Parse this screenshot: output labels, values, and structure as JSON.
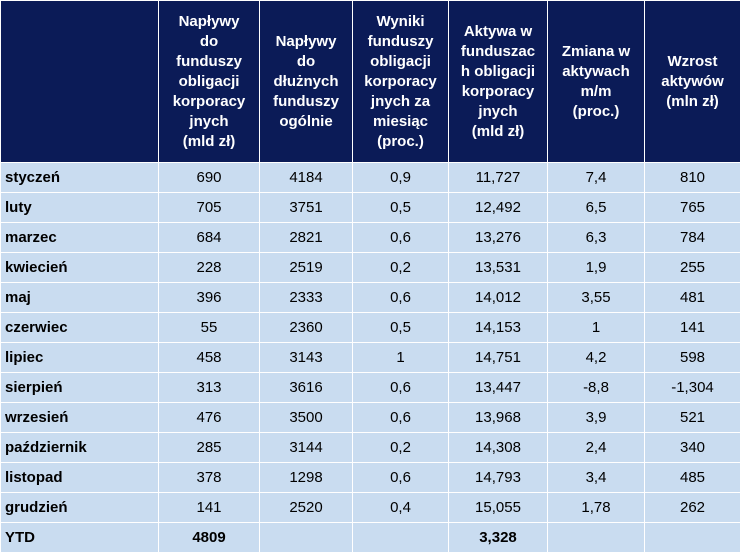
{
  "headers": [
    "",
    "Napływy\ndo\nfunduszy\nobligacji\nkorporacy\njnych\n(mld zł)",
    "Napływy\ndo\ndłużnych\nfunduszy\nogólnie",
    "Wyniki\nfunduszy\nobligacji\nkorporacy\njnych za\nmiesiąc\n(proc.)",
    "Aktywa w\nfunduszac\nh obligacji\nkorporacy\njnych\n(mld zł)",
    "Zmiana w\naktywach\nm/m\n(proc.)",
    "Wzrost\naktywów\n(mln zł)"
  ],
  "rows": [
    {
      "month": "styczeń",
      "c1": "690",
      "c2": "4184",
      "c3": "0,9",
      "c4": "11,727",
      "c5": "7,4",
      "c6": "810"
    },
    {
      "month": "luty",
      "c1": "705",
      "c2": "3751",
      "c3": "0,5",
      "c4": "12,492",
      "c5": "6,5",
      "c6": "765"
    },
    {
      "month": "marzec",
      "c1": "684",
      "c2": "2821",
      "c3": "0,6",
      "c4": "13,276",
      "c5": "6,3",
      "c6": "784"
    },
    {
      "month": "kwiecień",
      "c1": "228",
      "c2": "2519",
      "c3": "0,2",
      "c4": "13,531",
      "c5": "1,9",
      "c6": "255"
    },
    {
      "month": "maj",
      "c1": "396",
      "c2": "2333",
      "c3": "0,6",
      "c4": "14,012",
      "c5": "3,55",
      "c6": "481"
    },
    {
      "month": "czerwiec",
      "c1": "55",
      "c2": "2360",
      "c3": "0,5",
      "c4": "14,153",
      "c5": "1",
      "c6": "141"
    },
    {
      "month": "lipiec",
      "c1": "458",
      "c2": "3143",
      "c3": "1",
      "c4": "14,751",
      "c5": "4,2",
      "c6": "598"
    },
    {
      "month": "sierpień",
      "c1": "313",
      "c2": "3616",
      "c3": "0,6",
      "c4": "13,447",
      "c5": "-8,8",
      "c6": "-1,304"
    },
    {
      "month": "wrzesień",
      "c1": "476",
      "c2": "3500",
      "c3": "0,6",
      "c4": "13,968",
      "c5": "3,9",
      "c6": "521"
    },
    {
      "month": "październik",
      "c1": "285",
      "c2": "3144",
      "c3": "0,2",
      "c4": "14,308",
      "c5": "2,4",
      "c6": "340"
    },
    {
      "month": "listopad",
      "c1": "378",
      "c2": "1298",
      "c3": "0,6",
      "c4": "14,793",
      "c5": "3,4",
      "c6": "485"
    },
    {
      "month": "grudzień",
      "c1": "141",
      "c2": "2520",
      "c3": "0,4",
      "c4": "15,055",
      "c5": "1,78",
      "c6": "262"
    }
  ],
  "ytd": {
    "label": "YTD",
    "c1": "4809",
    "c2": "",
    "c3": "",
    "c4": "3,328",
    "c5": "",
    "c6": ""
  },
  "colors": {
    "header_bg": "#0b1b57",
    "header_text": "#ffffff",
    "cell_bg": "#c9dcf0"
  }
}
